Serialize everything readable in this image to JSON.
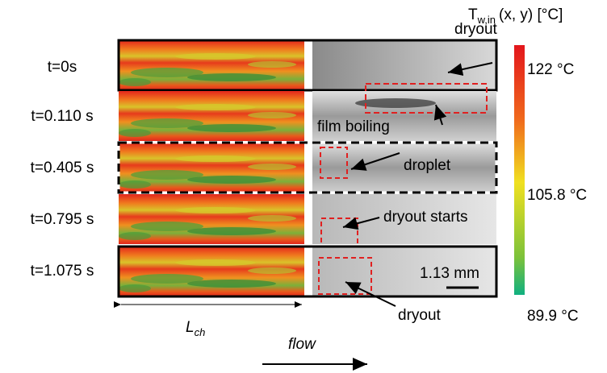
{
  "colorbar": {
    "title": {
      "symbol": "T",
      "subscript": "w,in",
      "suffix": "(x, y) [°C]"
    },
    "labels": [
      "122 °C",
      "105.8 °C",
      "89.9 °C"
    ]
  },
  "rows": [
    {
      "time": "t=0s",
      "annotation": "dryout"
    },
    {
      "time": "t=0.110 s",
      "annotation": "film boiling"
    },
    {
      "time": "t=0.405 s",
      "annotation": "droplet"
    },
    {
      "time": "t=0.795 s",
      "annotation": "dryout starts"
    },
    {
      "time": "t=1.075 s",
      "annotation": "dryout"
    }
  ],
  "length_label": {
    "symbol": "L",
    "subscript": "ch"
  },
  "flow_label": "flow",
  "scale_bar": "1.13 mm"
}
